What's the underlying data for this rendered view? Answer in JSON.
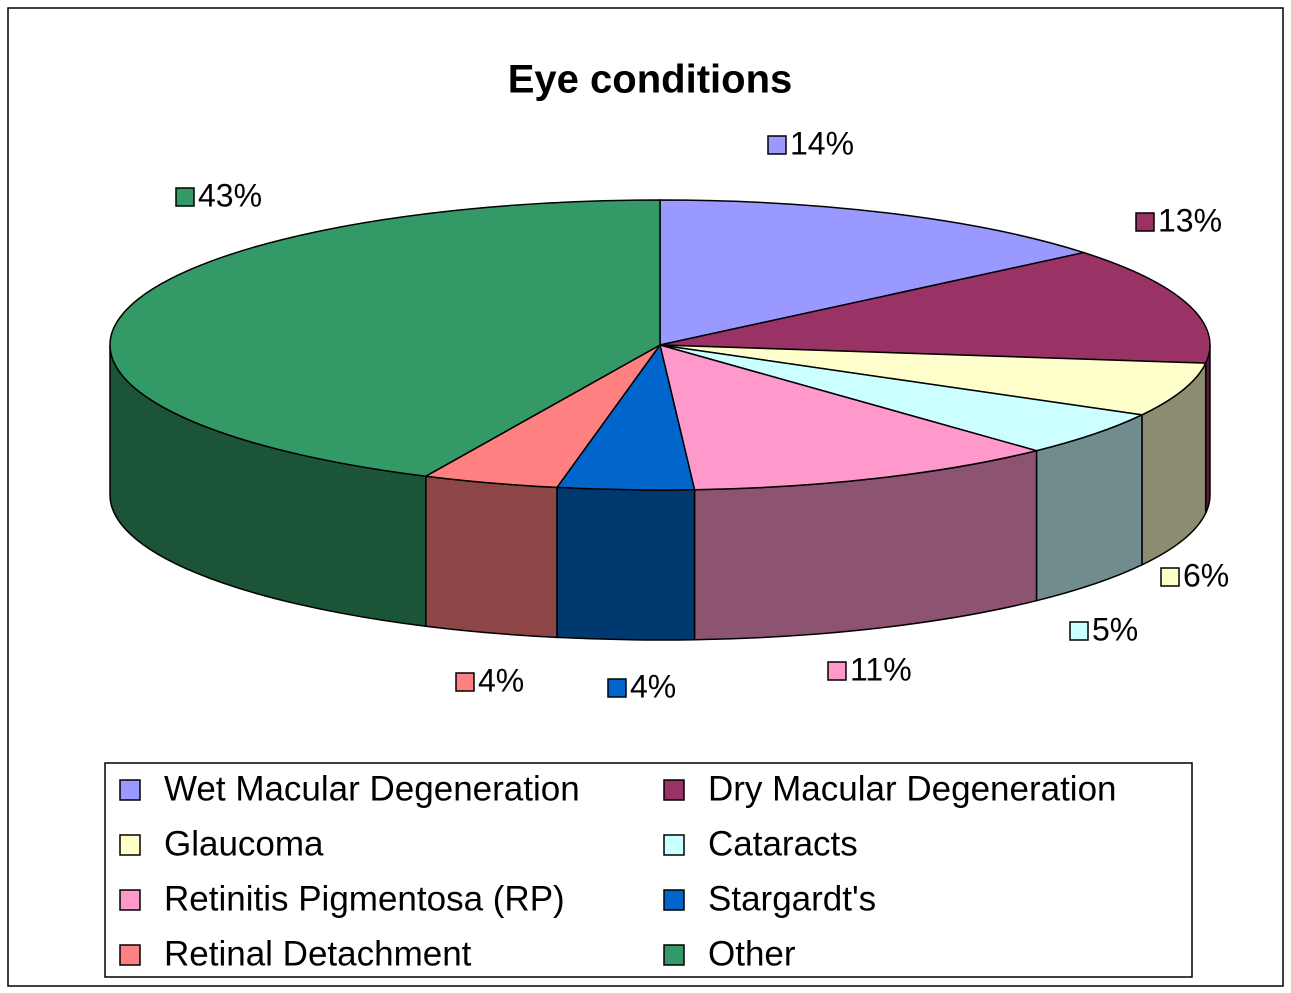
{
  "chart_data": {
    "type": "pie3d",
    "title": "Eye conditions",
    "categories": [
      "Wet Macular Degeneration",
      "Dry Macular Degeneration",
      "Glaucoma",
      "Cataracts",
      "Retinitis Pigmentosa (RP)",
      "Stargardt's",
      "Retinal Detachment",
      "Other"
    ],
    "values": [
      14,
      13,
      6,
      5,
      11,
      4,
      4,
      43
    ],
    "value_labels": [
      "14%",
      "13%",
      "6%",
      "5%",
      "11%",
      "4%",
      "4%",
      "43%"
    ],
    "colors": [
      "#9999ff",
      "#993366",
      "#ffffcc",
      "#ccffff",
      "#ff99cc",
      "#0066cc",
      "#ff8080",
      "#339966"
    ],
    "legend": "bottom"
  }
}
